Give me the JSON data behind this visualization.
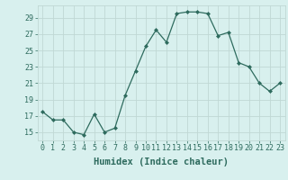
{
  "x": [
    0,
    1,
    2,
    3,
    4,
    5,
    6,
    7,
    8,
    9,
    10,
    11,
    12,
    13,
    14,
    15,
    16,
    17,
    18,
    19,
    20,
    21,
    22,
    23
  ],
  "y": [
    17.5,
    16.5,
    16.5,
    15.0,
    14.7,
    17.2,
    15.0,
    15.5,
    19.5,
    22.5,
    25.5,
    27.5,
    26.0,
    29.5,
    29.7,
    29.7,
    29.5,
    26.8,
    27.2,
    23.5,
    23.0,
    21.0,
    20.0,
    21.0
  ],
  "line_color": "#2e6b5e",
  "marker": "D",
  "marker_size": 2.0,
  "bg_color": "#d8f0ee",
  "grid_color": "#c0d8d4",
  "grid_minor_color": "#d0e8e4",
  "xlabel": "Humidex (Indice chaleur)",
  "yticks": [
    15,
    17,
    19,
    21,
    23,
    25,
    27,
    29
  ],
  "xticks": [
    0,
    1,
    2,
    3,
    4,
    5,
    6,
    7,
    8,
    9,
    10,
    11,
    12,
    13,
    14,
    15,
    16,
    17,
    18,
    19,
    20,
    21,
    22,
    23
  ],
  "xlim": [
    -0.5,
    23.5
  ],
  "ylim": [
    14.0,
    30.5
  ],
  "tick_label_fontsize": 6.0,
  "xlabel_fontsize": 7.5
}
